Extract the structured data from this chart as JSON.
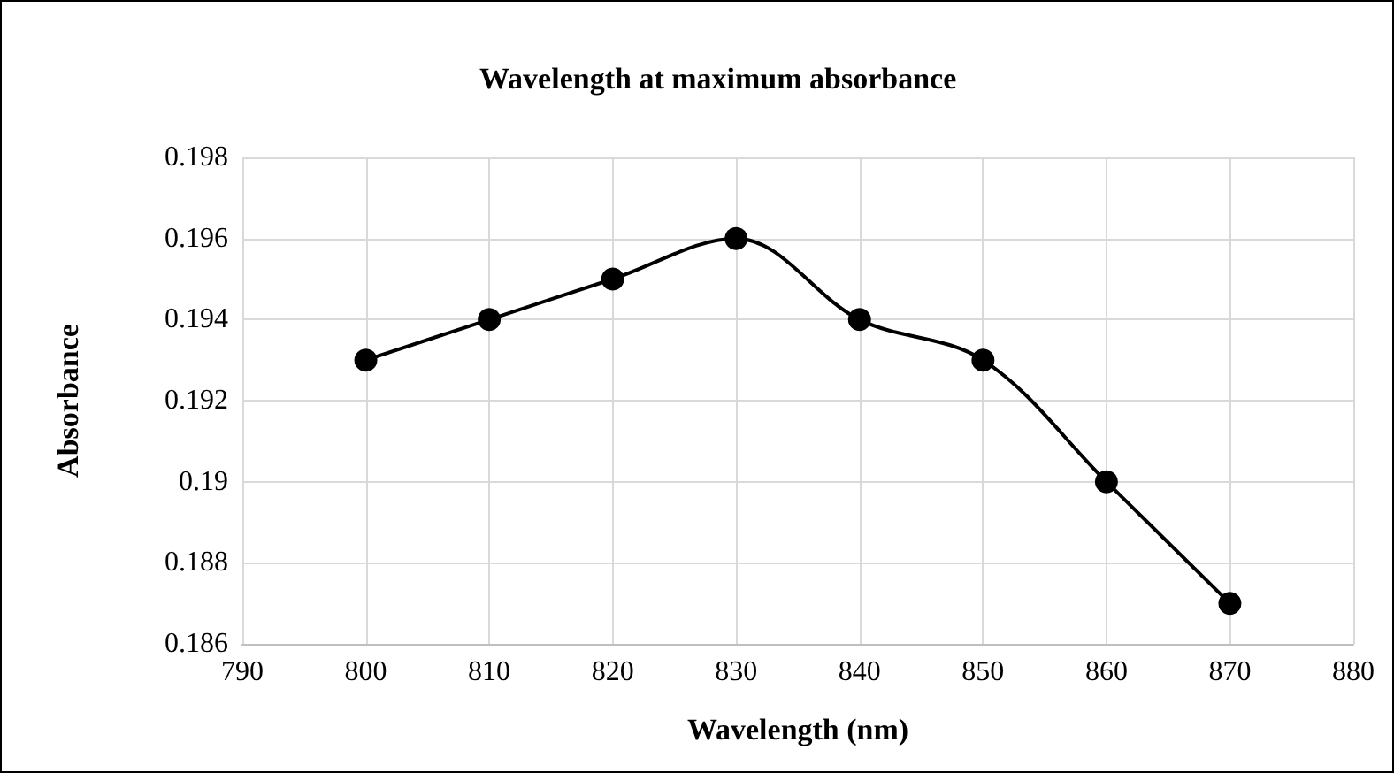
{
  "chart_data": {
    "type": "line",
    "title": "Wavelength at maximum absorbance",
    "xlabel": "Wavelength (nm)",
    "ylabel": "Absorbance",
    "x": [
      800,
      810,
      820,
      830,
      840,
      850,
      860,
      870
    ],
    "values": [
      0.193,
      0.194,
      0.195,
      0.196,
      0.194,
      0.193,
      0.19,
      0.187
    ],
    "color": "#000000",
    "marker": "circle",
    "line_style": "solid",
    "grid": true,
    "xlim": [
      790,
      880
    ],
    "xticks": [
      790,
      800,
      810,
      820,
      830,
      840,
      850,
      860,
      870,
      880
    ],
    "ylim": [
      0.186,
      0.198
    ],
    "yticks": [
      0.186,
      0.188,
      0.19,
      0.192,
      0.194,
      0.196,
      0.198
    ]
  }
}
